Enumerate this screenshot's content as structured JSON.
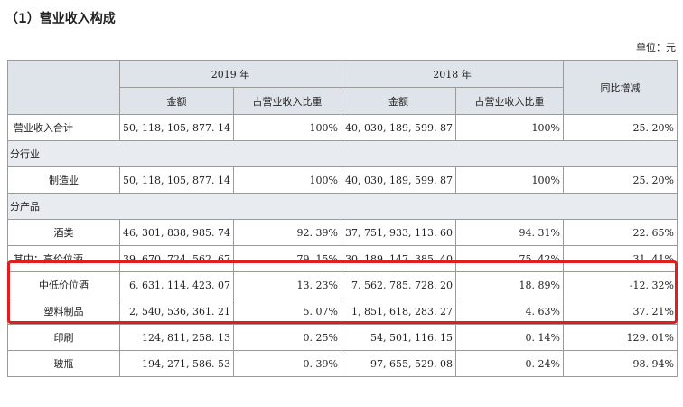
{
  "section_title": "（1）营业收入构成",
  "unit_label": "单位：元",
  "header": {
    "year_2019": "2019 年",
    "year_2018": "2018 年",
    "amount": "金额",
    "share": "占营业收入比重",
    "yoy": "同比增减"
  },
  "rows": [
    {
      "type": "data",
      "label": "营业收入合计",
      "align": "left",
      "a2019": "50, 118, 105, 877. 14",
      "s2019": "100%",
      "a2018": "40, 030, 189, 599. 87",
      "s2018": "100%",
      "yoy": "25. 20%"
    },
    {
      "type": "category",
      "label": "分行业"
    },
    {
      "type": "data",
      "label": "制造业",
      "align": "center",
      "a2019": "50, 118, 105, 877. 14",
      "s2019": "100%",
      "a2018": "40, 030, 189, 599. 87",
      "s2018": "100%",
      "yoy": "25. 20%"
    },
    {
      "type": "category",
      "label": "分产品"
    },
    {
      "type": "data",
      "label": "酒类",
      "align": "center",
      "a2019": "46, 301, 838, 985. 74",
      "s2019": "92. 39%",
      "a2018": "37, 751, 933, 113. 60",
      "s2018": "94. 31%",
      "yoy": "22. 65%"
    },
    {
      "type": "data",
      "label": "其中：高价位酒",
      "align": "left",
      "a2019": "39, 670, 724, 562. 67",
      "s2019": "79. 15%",
      "a2018": "30, 189, 147, 385. 40",
      "s2018": "75. 42%",
      "yoy": "31. 41%"
    },
    {
      "type": "data",
      "label": "中低价位酒",
      "align": "center",
      "a2019": "6, 631, 114, 423. 07",
      "s2019": "13. 23%",
      "a2018": "7, 562, 785, 728. 20",
      "s2018": "18. 89%",
      "yoy": "-12. 32%"
    },
    {
      "type": "data",
      "label": "塑料制品",
      "align": "center",
      "a2019": "2, 540, 536, 361. 21",
      "s2019": "5. 07%",
      "a2018": "1, 851, 618, 283. 27",
      "s2018": "4. 63%",
      "yoy": "37. 21%"
    },
    {
      "type": "data",
      "label": "印刷",
      "align": "center",
      "a2019": "124, 811, 258. 13",
      "s2019": "0. 25%",
      "a2018": "54, 501, 116. 15",
      "s2018": "0. 14%",
      "yoy": "129. 01%"
    },
    {
      "type": "data",
      "label": "玻瓶",
      "align": "center",
      "a2019": "194, 271, 586. 53",
      "s2019": "0. 39%",
      "a2018": "97, 655, 529. 08",
      "s2018": "0. 24%",
      "yoy": "98. 94%"
    }
  ],
  "colors": {
    "header_bg": "#dfe3ea",
    "highlight": "#e01e1e",
    "grid": "#9a9a9a"
  }
}
